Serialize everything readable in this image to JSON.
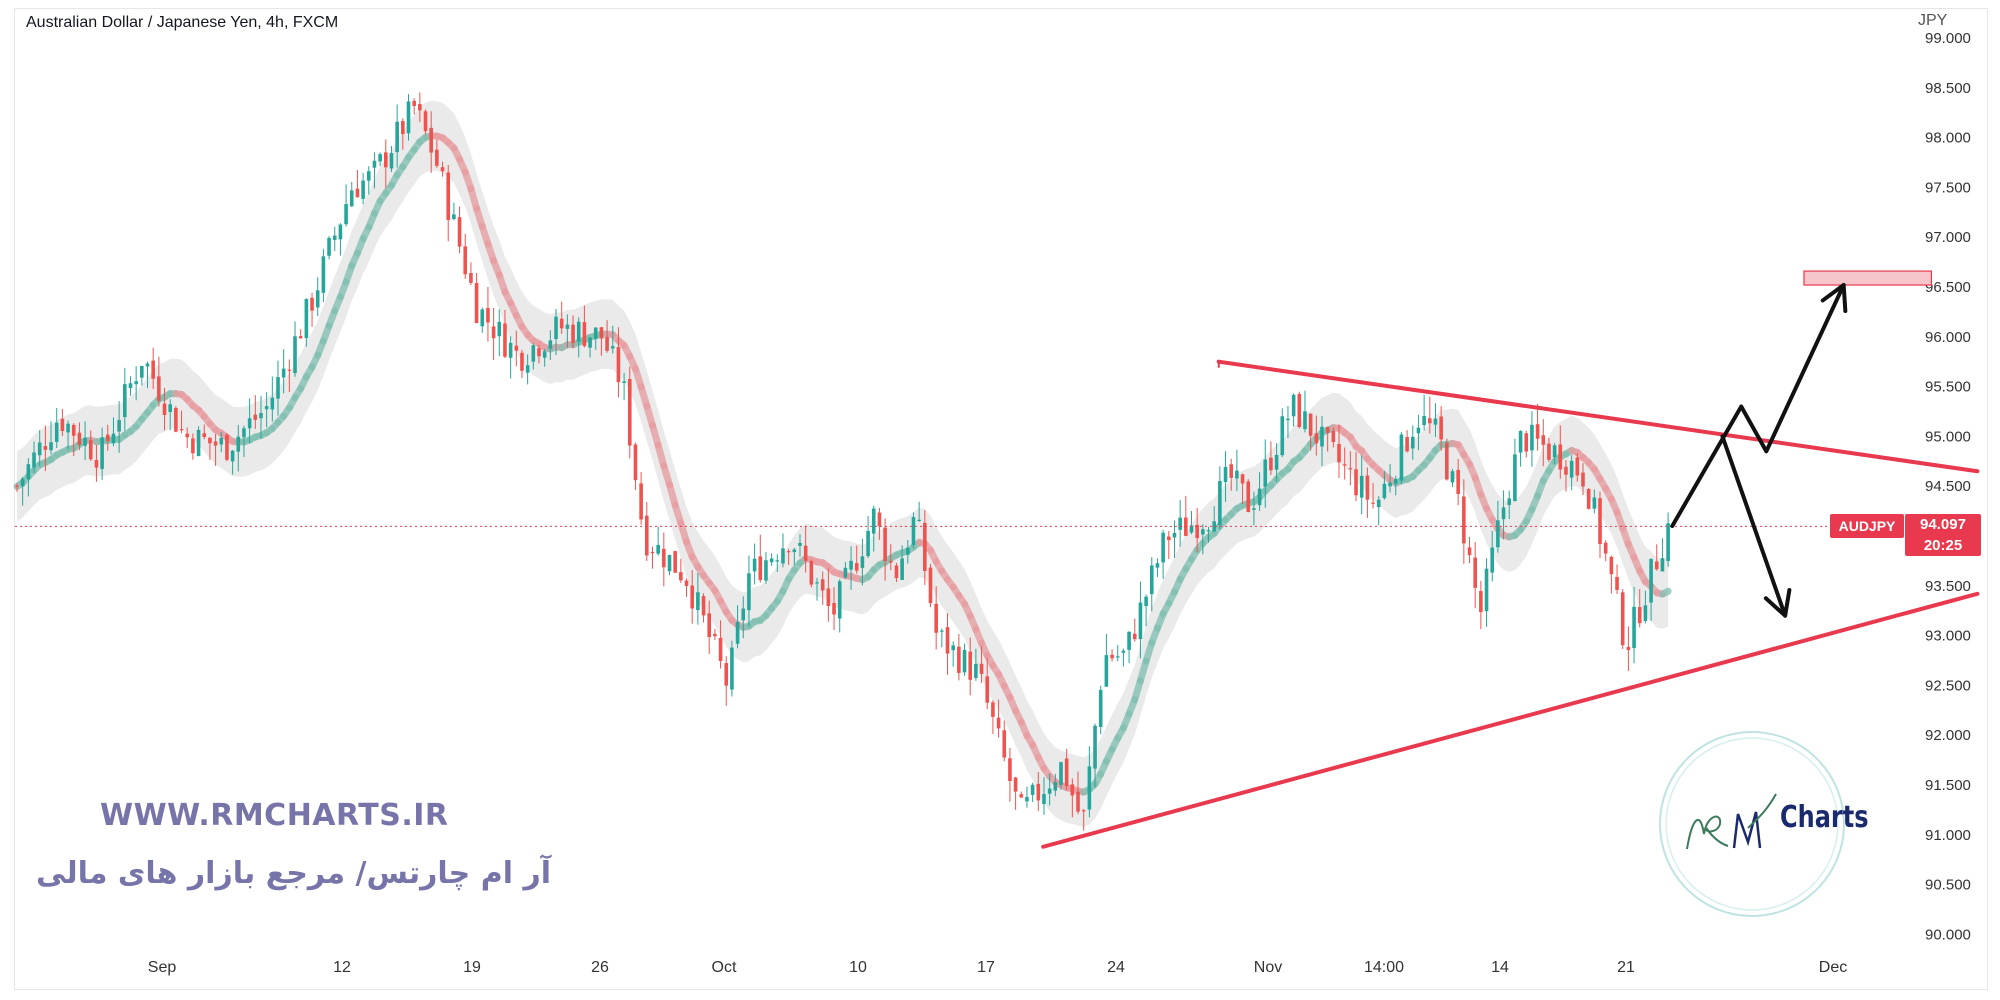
{
  "header": {
    "symbol_title": "Australian Dollar / Japanese Yen, 4h, FXCM",
    "currency": "JPY"
  },
  "price_tag": {
    "symbol": "AUDJPY",
    "price": "94.097",
    "countdown": "20:25",
    "color": "#e8394e"
  },
  "watermark": {
    "url": "WWW.RMCHARTS.IR",
    "tagline_fa": "آر ام چارتس/ مرجع بازار های مالی",
    "logo_text": "Charts",
    "logo_icon": "rm-charts-logo"
  },
  "chart_data": {
    "type": "candlestick",
    "instrument": "AUDJPY",
    "timeframe": "4h",
    "ylim": [
      90.0,
      99.0
    ],
    "y_ticks": [
      "90.000",
      "90.500",
      "91.000",
      "91.500",
      "92.000",
      "92.500",
      "93.000",
      "93.500",
      "94.000",
      "94.500",
      "95.000",
      "95.500",
      "96.000",
      "96.500",
      "97.000",
      "97.500",
      "98.000",
      "98.500",
      "99.000"
    ],
    "x_ticks": [
      "Sep",
      "12",
      "19",
      "26",
      "Oct",
      "10",
      "17",
      "24",
      "Nov",
      "14:00",
      "14",
      "21",
      "Dec"
    ],
    "path_anchors": [
      {
        "t": 0,
        "price": 94.5
      },
      {
        "t": 2,
        "price": 95.2
      },
      {
        "t": 4,
        "price": 94.8
      },
      {
        "t": 6,
        "price": 95.8
      },
      {
        "t": 8,
        "price": 95.0
      },
      {
        "t": 10,
        "price": 94.9
      },
      {
        "t": 12,
        "price": 95.3
      },
      {
        "t": 14,
        "price": 96.3
      },
      {
        "t": 16,
        "price": 97.5
      },
      {
        "t": 17,
        "price": 97.6
      },
      {
        "t": 19,
        "price": 98.3
      },
      {
        "t": 20,
        "price": 97.8
      },
      {
        "t": 22,
        "price": 96.3
      },
      {
        "t": 24,
        "price": 95.8
      },
      {
        "t": 26,
        "price": 96.1
      },
      {
        "t": 28,
        "price": 96.0
      },
      {
        "t": 29,
        "price": 95.5
      },
      {
        "t": 30,
        "price": 94.0
      },
      {
        "t": 32,
        "price": 93.6
      },
      {
        "t": 34,
        "price": 92.5
      },
      {
        "t": 35,
        "price": 93.6
      },
      {
        "t": 37,
        "price": 94.0
      },
      {
        "t": 39,
        "price": 93.2
      },
      {
        "t": 41,
        "price": 94.2
      },
      {
        "t": 42,
        "price": 93.6
      },
      {
        "t": 43,
        "price": 94.2
      },
      {
        "t": 44,
        "price": 93.0
      },
      {
        "t": 46,
        "price": 92.6
      },
      {
        "t": 48,
        "price": 91.2
      },
      {
        "t": 50,
        "price": 91.7
      },
      {
        "t": 51,
        "price": 91.1
      },
      {
        "t": 52,
        "price": 92.8
      },
      {
        "t": 53,
        "price": 92.8
      },
      {
        "t": 55,
        "price": 94.0
      },
      {
        "t": 57,
        "price": 94.2
      },
      {
        "t": 58,
        "price": 94.6
      },
      {
        "t": 59,
        "price": 94.3
      },
      {
        "t": 61,
        "price": 95.3
      },
      {
        "t": 63,
        "price": 94.8
      },
      {
        "t": 65,
        "price": 94.3
      },
      {
        "t": 67,
        "price": 95.2
      },
      {
        "t": 68,
        "price": 95.0
      },
      {
        "t": 69,
        "price": 94.3
      },
      {
        "t": 70,
        "price": 93.2
      },
      {
        "t": 71,
        "price": 94.2
      },
      {
        "t": 72,
        "price": 95.0
      },
      {
        "t": 74,
        "price": 94.8
      },
      {
        "t": 75,
        "price": 94.6
      },
      {
        "t": 76,
        "price": 93.8
      },
      {
        "t": 77,
        "price": 92.9
      },
      {
        "t": 78,
        "price": 93.5
      },
      {
        "t": 79,
        "price": 94.1
      }
    ],
    "price_line": 94.097,
    "triangle": {
      "upper": {
        "from": {
          "t": 57.5,
          "price": 95.75
        },
        "to": {
          "t": 93.8,
          "price": 94.65
        }
      },
      "lower": {
        "from": {
          "t": 49.1,
          "price": 90.88
        },
        "to": {
          "t": 93.8,
          "price": 93.42
        }
      }
    },
    "target_zone": {
      "t_start": 85.5,
      "t_end": 91.6,
      "price_low": 96.52,
      "price_high": 96.66
    },
    "scenario_path": [
      {
        "t": 79.2,
        "price": 94.1
      },
      {
        "t": 82.5,
        "price": 95.3
      },
      {
        "t": 83.7,
        "price": 94.85
      },
      {
        "t": 87.4,
        "price": 96.52
      }
    ],
    "scenario_path_down": [
      {
        "t": 81.6,
        "price": 95.0
      },
      {
        "t": 84.6,
        "price": 93.2
      }
    ]
  }
}
